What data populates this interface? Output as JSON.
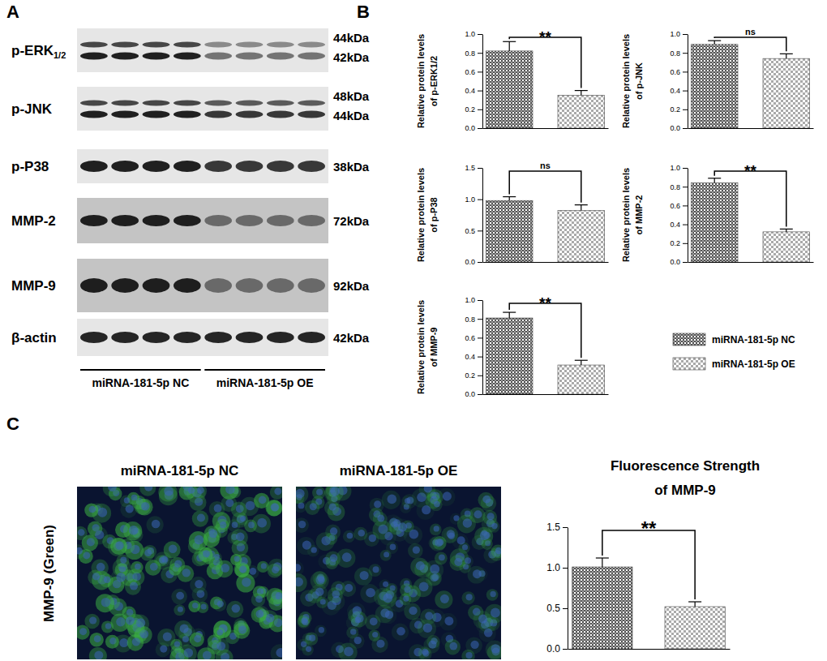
{
  "panel_labels": [
    "A",
    "B",
    "C"
  ],
  "blot": {
    "rows": [
      {
        "label": "p-ERK",
        "subscript": "1/2",
        "kda": [
          "44kDa",
          "42kDa"
        ]
      },
      {
        "label": "p-JNK",
        "kda": [
          "48kDa",
          "44kDa"
        ]
      },
      {
        "label": "p-P38",
        "kda": [
          "38kDa"
        ]
      },
      {
        "label": "MMP-2",
        "kda": [
          "72kDa"
        ]
      },
      {
        "label": "MMP-9",
        "kda": [
          "92kDa"
        ]
      },
      {
        "label": "β-actin",
        "kda": [
          "42kDa"
        ]
      }
    ],
    "groups": [
      "miRNA-181-5p NC",
      "miRNA-181-5p OE"
    ],
    "lanes_per_group": 4
  },
  "micrographs": {
    "titles": [
      "miRNA-181-5p NC",
      "miRNA-181-5p OE"
    ],
    "ylabel": "MMP-9 (Green)"
  },
  "legend_entries": [
    "miRNA-181-5p NC",
    "miRNA-181-5p OE"
  ],
  "chart_data": [
    {
      "type": "bar",
      "ylabel": [
        "Relative protein levels",
        "of p-ERK1/2"
      ],
      "categories": [
        null,
        null
      ],
      "values": [
        0.82,
        0.35
      ],
      "errors": [
        0.1,
        0.05
      ],
      "annotation": "**",
      "colors": [
        "#555555",
        "#aaaaaa"
      ],
      "ylim": [
        0,
        1.0
      ],
      "yticks": [
        {
          "value": 0,
          "label": "0.0"
        },
        0.2,
        0.4,
        0.6,
        0.8,
        {
          "value": 1,
          "label": "1.0"
        }
      ],
      "tick_labels": "y"
    },
    {
      "type": "bar",
      "ylabel": [
        "Relative protein levels",
        "of p-JNK"
      ],
      "categories": [
        null,
        null
      ],
      "values": [
        0.89,
        0.74
      ],
      "errors": [
        0.04,
        0.05
      ],
      "annotation": "ns",
      "colors": [
        "#555555",
        "#aaaaaa"
      ],
      "ylim": [
        0,
        1.0
      ],
      "yticks": [
        {
          "value": 0,
          "label": "0.0"
        },
        0.2,
        0.4,
        0.6,
        0.8,
        {
          "value": 1,
          "label": "1.0"
        }
      ],
      "tick_labels": "y"
    },
    {
      "type": "bar",
      "ylabel": [
        "Relative protein levels",
        "of p-P38"
      ],
      "categories": [
        null,
        null
      ],
      "values": [
        0.98,
        0.82
      ],
      "errors": [
        0.06,
        0.09
      ],
      "annotation": "ns",
      "colors": [
        "#555555",
        "#aaaaaa"
      ],
      "ylim": [
        0,
        1.5
      ],
      "yticks": [
        {
          "value": 0,
          "label": "0.0"
        },
        0.5,
        {
          "value": 1,
          "label": "1.0"
        },
        1.5
      ],
      "tick_labels": "y"
    },
    {
      "type": "bar",
      "ylabel": [
        "Relative protein levels",
        "of MMP-2"
      ],
      "categories": [
        null,
        null
      ],
      "values": [
        0.84,
        0.32
      ],
      "errors": [
        0.05,
        0.03
      ],
      "annotation": "**",
      "colors": [
        "#555555",
        "#aaaaaa"
      ],
      "ylim": [
        0,
        1.0
      ],
      "yticks": [
        {
          "value": 0,
          "label": "0.0"
        },
        0.2,
        0.4,
        0.6,
        0.8,
        {
          "value": 1,
          "label": "1.0"
        }
      ],
      "tick_labels": "y"
    },
    {
      "type": "bar",
      "ylabel": [
        "Relative protein levels",
        "of MMP-9"
      ],
      "categories": [
        null,
        null
      ],
      "values": [
        0.81,
        0.31
      ],
      "errors": [
        0.06,
        0.05
      ],
      "annotation": "**",
      "colors": [
        "#555555",
        "#aaaaaa"
      ],
      "ylim": [
        0,
        1.0
      ],
      "yticks": [
        {
          "value": 0,
          "label": "0.0"
        },
        0.2,
        0.4,
        0.6,
        0.8,
        {
          "value": 1,
          "label": "1.0"
        }
      ],
      "tick_labels": "y"
    },
    {
      "type": "bar",
      "title": [
        "Fluorescence Strength",
        "of MMP-9"
      ],
      "categories": [
        null,
        null
      ],
      "values": [
        1.01,
        0.52
      ],
      "errors": [
        0.11,
        0.06
      ],
      "annotation": "**",
      "colors": [
        "#555555",
        "#aaaaaa"
      ],
      "ylim": [
        0,
        1.5
      ],
      "yticks": [
        {
          "value": 0,
          "label": "0.0"
        },
        0.5,
        {
          "value": 1,
          "label": "1.0"
        },
        1.5
      ],
      "tick_labels": "y"
    }
  ]
}
